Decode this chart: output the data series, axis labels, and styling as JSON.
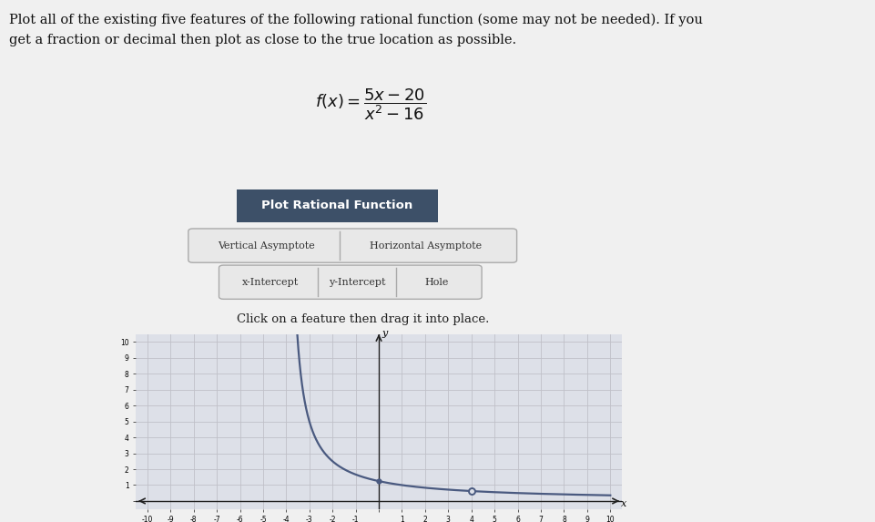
{
  "title_text_line1": "Plot all of the existing five features of the following rational function (some may not be needed). If you",
  "title_text_line2": "get a fraction or decimal then plot as close to the true location as possible.",
  "button_label": "Plot Rational Function",
  "btn_color": "#3d5068",
  "btn_text_color": "#ffffff",
  "feature_row1": [
    "Vertical Asymptote",
    "Horizontal Asymptote"
  ],
  "feature_row2": [
    "x-Intercept",
    "y-Intercept",
    "Hole"
  ],
  "feature_box_color": "#e8e8e8",
  "feature_box_edge": "#aaaaaa",
  "instruction": "Click on a feature then drag it into place.",
  "page_bg": "#f0f0f0",
  "plot_bg": "#dde0e8",
  "grid_color": "#c0c0c8",
  "curve_color": "#4a5a80",
  "axis_color": "#222222",
  "xlim": [
    -10,
    10
  ],
  "ylim": [
    0,
    10
  ],
  "hole_x": 4,
  "hole_y": 0.625,
  "y_intercept": 1.25
}
